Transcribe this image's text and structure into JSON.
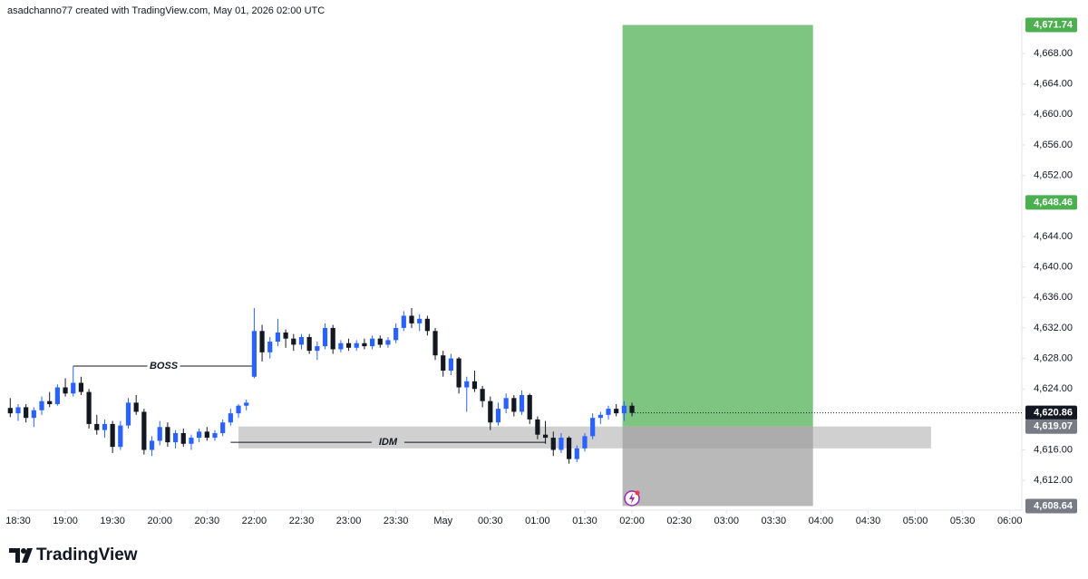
{
  "header": {
    "text": "asadchanno77 created with TradingView.com, May 01, 2026 02:00 UTC"
  },
  "footer": {
    "brand": "TradingView"
  },
  "chart_data": {
    "type": "candlestick",
    "up_color": "#2962ff",
    "down_color": "#131722",
    "xlim": [
      -0.38,
      128.53
    ],
    "ylim": [
      4608.1,
      4672.4
    ],
    "xticks": [
      {
        "value": 1,
        "label": "18:30"
      },
      {
        "value": 7,
        "label": "19:00"
      },
      {
        "value": 13,
        "label": "19:30"
      },
      {
        "value": 19,
        "label": "20:00"
      },
      {
        "value": 25,
        "label": "20:30"
      },
      {
        "value": 31,
        "label": "22:00"
      },
      {
        "value": 37,
        "label": "22:30"
      },
      {
        "value": 43,
        "label": "23:00"
      },
      {
        "value": 49,
        "label": "23:30"
      },
      {
        "value": 55,
        "label": "May"
      },
      {
        "value": 61,
        "label": "00:30"
      },
      {
        "value": 67,
        "label": "01:00"
      },
      {
        "value": 73,
        "label": "01:30"
      },
      {
        "value": 79,
        "label": "02:00"
      },
      {
        "value": 85,
        "label": "02:30"
      },
      {
        "value": 91,
        "label": "03:00"
      },
      {
        "value": 97,
        "label": "03:30"
      },
      {
        "value": 103,
        "label": "04:00"
      },
      {
        "value": 109,
        "label": "04:30"
      },
      {
        "value": 115,
        "label": "05:00"
      },
      {
        "value": 121,
        "label": "05:30"
      },
      {
        "value": 127,
        "label": "06:00"
      }
    ],
    "yticks": [
      {
        "value": 4612,
        "label": "4,612.00"
      },
      {
        "value": 4616,
        "label": "4,616.00"
      },
      {
        "value": 4624,
        "label": "4,624.00"
      },
      {
        "value": 4628,
        "label": "4,628.00"
      },
      {
        "value": 4632,
        "label": "4,632.00"
      },
      {
        "value": 4636,
        "label": "4,636.00"
      },
      {
        "value": 4640,
        "label": "4,640.00"
      },
      {
        "value": 4644,
        "label": "4,644.00"
      },
      {
        "value": 4652,
        "label": "4,652.00"
      },
      {
        "value": 4656,
        "label": "4,656.00"
      },
      {
        "value": 4660,
        "label": "4,660.00"
      },
      {
        "value": 4664,
        "label": "4,664.00"
      },
      {
        "value": 4668,
        "label": "4,668.00"
      }
    ],
    "values": [
      [
        4621.5,
        4622.8,
        4620.3,
        4620.8
      ],
      [
        4620.8,
        4622.0,
        4619.8,
        4621.6
      ],
      [
        4621.6,
        4622.0,
        4619.6,
        4620.2
      ],
      [
        4620.2,
        4621.6,
        4619.0,
        4621.2
      ],
      [
        4621.2,
        4623.0,
        4620.6,
        4622.4
      ],
      [
        4622.4,
        4623.6,
        4621.6,
        4622.0
      ],
      [
        4622.0,
        4624.6,
        4621.8,
        4624.2
      ],
      [
        4624.2,
        4625.4,
        4623.0,
        4623.4
      ],
      [
        4623.4,
        4627.0,
        4623.0,
        4624.8
      ],
      [
        4624.8,
        4625.6,
        4623.2,
        4623.6
      ],
      [
        4623.6,
        4624.0,
        4618.8,
        4619.4
      ],
      [
        4619.4,
        4620.6,
        4618.0,
        4618.6
      ],
      [
        4618.6,
        4620.0,
        4617.6,
        4619.4
      ],
      [
        4619.4,
        4619.8,
        4615.6,
        4616.4
      ],
      [
        4616.4,
        4619.8,
        4616.0,
        4619.2
      ],
      [
        4619.2,
        4622.8,
        4618.8,
        4622.2
      ],
      [
        4622.2,
        4623.2,
        4620.6,
        4621.0
      ],
      [
        4621.0,
        4621.4,
        4615.4,
        4616.0
      ],
      [
        4616.0,
        4617.8,
        4615.2,
        4617.2
      ],
      [
        4617.2,
        4619.8,
        4616.6,
        4619.0
      ],
      [
        4619.0,
        4619.6,
        4616.4,
        4617.0
      ],
      [
        4617.0,
        4618.6,
        4616.2,
        4618.2
      ],
      [
        4618.2,
        4618.8,
        4616.4,
        4616.8
      ],
      [
        4616.8,
        4618.0,
        4616.0,
        4617.6
      ],
      [
        4617.6,
        4618.8,
        4617.0,
        4618.4
      ],
      [
        4618.4,
        4619.0,
        4617.2,
        4617.6
      ],
      [
        4617.6,
        4618.6,
        4617.2,
        4618.2
      ],
      [
        4618.2,
        4620.0,
        4617.8,
        4619.6
      ],
      [
        4619.6,
        4621.4,
        4619.2,
        4620.8
      ],
      [
        4620.8,
        4622.0,
        4620.2,
        4621.8
      ],
      [
        4621.8,
        4622.6,
        4621.2,
        4622.2
      ],
      [
        4625.6,
        4634.6,
        4625.4,
        4631.6
      ],
      [
        4631.6,
        4632.4,
        4627.6,
        4628.8
      ],
      [
        4628.8,
        4630.8,
        4628.0,
        4630.2
      ],
      [
        4630.2,
        4633.2,
        4629.6,
        4631.4
      ],
      [
        4631.4,
        4631.8,
        4629.4,
        4630.6
      ],
      [
        4630.6,
        4631.2,
        4629.0,
        4629.8
      ],
      [
        4629.8,
        4631.2,
        4629.2,
        4630.8
      ],
      [
        4630.8,
        4631.2,
        4628.6,
        4629.0
      ],
      [
        4629.0,
        4630.2,
        4627.8,
        4629.6
      ],
      [
        4629.6,
        4632.6,
        4629.2,
        4632.0
      ],
      [
        4632.0,
        4632.4,
        4628.6,
        4629.2
      ],
      [
        4629.2,
        4630.4,
        4628.8,
        4630.0
      ],
      [
        4630.0,
        4630.6,
        4629.0,
        4629.4
      ],
      [
        4629.4,
        4630.4,
        4629.0,
        4630.0
      ],
      [
        4630.0,
        4630.6,
        4629.2,
        4629.6
      ],
      [
        4629.6,
        4631.0,
        4629.2,
        4630.6
      ],
      [
        4630.6,
        4631.0,
        4629.4,
        4629.8
      ],
      [
        4629.8,
        4630.8,
        4629.4,
        4630.4
      ],
      [
        4630.4,
        4632.6,
        4630.0,
        4632.0
      ],
      [
        4632.0,
        4634.2,
        4631.6,
        4633.6
      ],
      [
        4633.6,
        4634.6,
        4632.0,
        4632.6
      ],
      [
        4632.6,
        4633.8,
        4631.6,
        4633.2
      ],
      [
        4633.2,
        4633.6,
        4631.0,
        4631.6
      ],
      [
        4631.6,
        4632.0,
        4627.8,
        4628.4
      ],
      [
        4628.4,
        4629.0,
        4625.6,
        4626.4
      ],
      [
        4626.4,
        4628.6,
        4625.8,
        4628.0
      ],
      [
        4628.0,
        4628.2,
        4623.4,
        4624.2
      ],
      [
        4624.2,
        4625.6,
        4621.0,
        4625.0
      ],
      [
        4625.0,
        4626.4,
        4623.6,
        4624.0
      ],
      [
        4624.0,
        4624.4,
        4621.6,
        4622.4
      ],
      [
        4622.4,
        4623.0,
        4618.6,
        4619.6
      ],
      [
        4619.6,
        4622.2,
        4619.2,
        4621.4
      ],
      [
        4621.4,
        4623.4,
        4620.8,
        4622.8
      ],
      [
        4622.8,
        4623.2,
        4620.4,
        4621.0
      ],
      [
        4621.0,
        4623.8,
        4620.6,
        4623.2
      ],
      [
        4623.2,
        4623.4,
        4619.4,
        4620.0
      ],
      [
        4620.0,
        4620.4,
        4617.4,
        4618.0
      ],
      [
        4618.0,
        4619.8,
        4616.8,
        4617.6
      ],
      [
        4617.6,
        4618.4,
        4615.2,
        4616.0
      ],
      [
        4616.0,
        4618.2,
        4615.6,
        4617.6
      ],
      [
        4617.6,
        4617.8,
        4614.2,
        4614.8
      ],
      [
        4614.8,
        4616.6,
        4614.4,
        4616.2
      ],
      [
        4616.2,
        4618.2,
        4615.8,
        4617.8
      ],
      [
        4617.8,
        4620.8,
        4617.4,
        4620.2
      ],
      [
        4620.2,
        4621.0,
        4619.4,
        4620.6
      ],
      [
        4620.6,
        4621.8,
        4620.0,
        4621.4
      ],
      [
        4621.4,
        4622.0,
        4620.4,
        4620.8
      ],
      [
        4620.8,
        4622.4,
        4619.8,
        4621.8
      ],
      [
        4621.8,
        4622.2,
        4620.4,
        4620.86
      ]
    ],
    "annotations": [
      {
        "text": "BOSS",
        "x_start": 8,
        "x_end": 31,
        "value": 4627.0
      },
      {
        "text": "IDM",
        "x_start": 28,
        "x_end": 68,
        "value": 4617.0
      }
    ],
    "zone": {
      "x_start": 29,
      "x_end": 117,
      "top": 4619.07,
      "bottom": 4616.2,
      "color": "#c8c8c8"
    },
    "position": {
      "x_start": 77.8,
      "x_end": 102,
      "entry": 4619.07,
      "target": 4671.74,
      "stop": 4608.64,
      "target_color": "#4caf50",
      "stop_color": "#9e9e9e"
    },
    "current_price": 4620.86,
    "price_labels": [
      {
        "value": 4671.74,
        "label": "4,671.74",
        "color": "#4caf50"
      },
      {
        "value": 4648.46,
        "label": "4,648.46",
        "color": "#4caf50"
      },
      {
        "value": 4620.86,
        "label": "4,620.86",
        "color": "#131722"
      },
      {
        "value": 4619.07,
        "label": "4,619.07",
        "color": "#787b86"
      },
      {
        "value": 4608.64,
        "label": "4,608.64",
        "color": "#787b86"
      }
    ]
  }
}
